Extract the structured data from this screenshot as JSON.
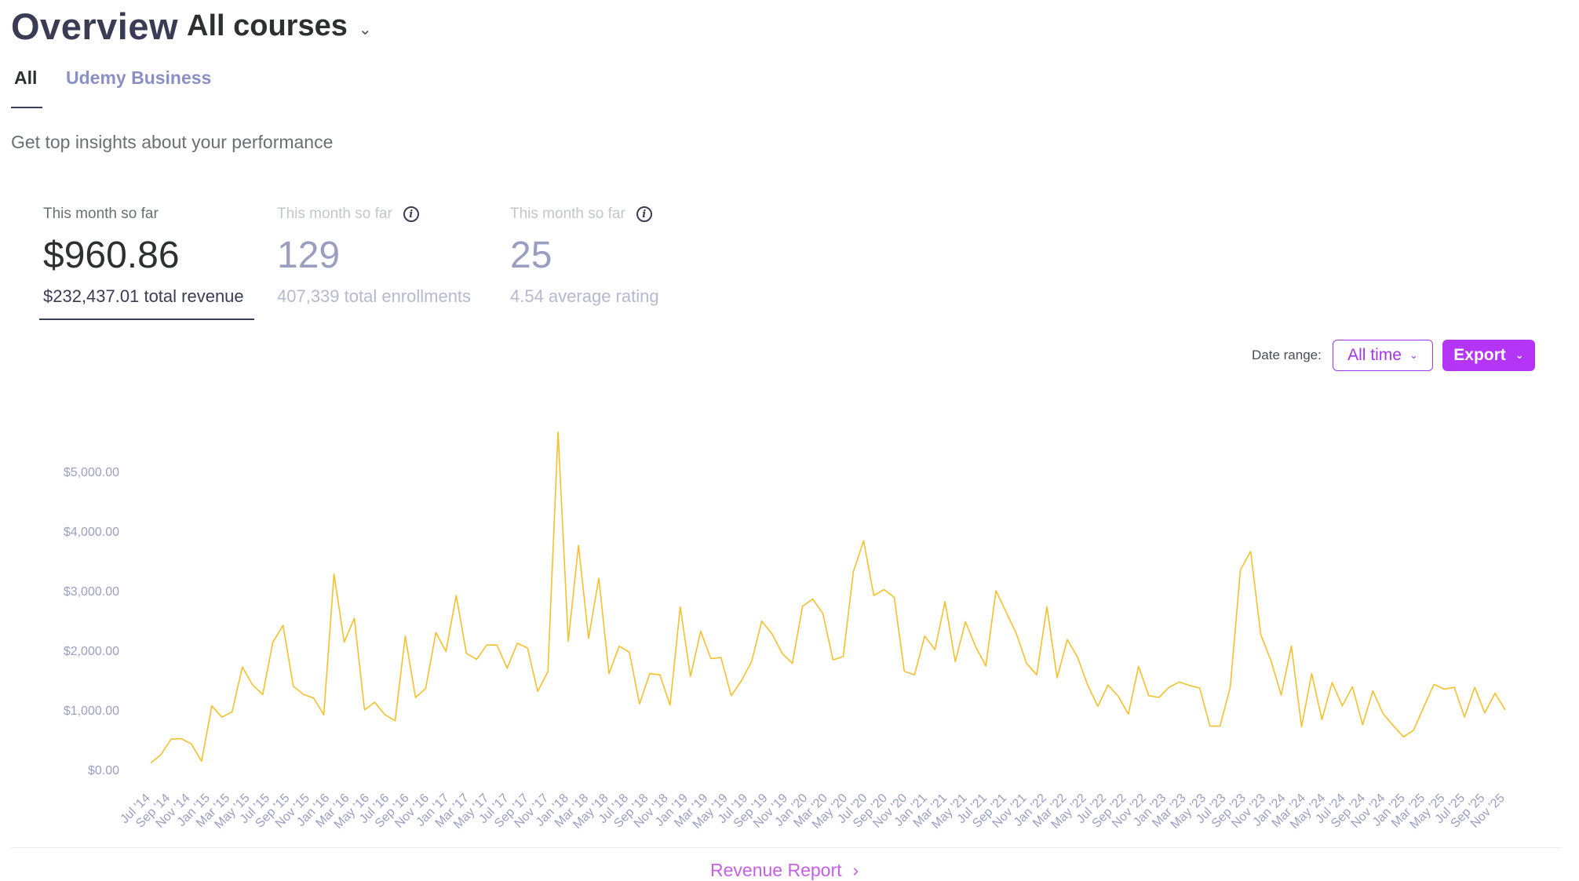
{
  "header": {
    "title": "Overview",
    "course_select": "All courses",
    "tabs": [
      {
        "label": "All",
        "active": true
      },
      {
        "label": "Udemy Business",
        "active": false
      }
    ],
    "subtitle": "Get top insights about your performance"
  },
  "metrics": [
    {
      "period": "This month so far",
      "value": "$960.86",
      "total": "$232,437.01 total revenue",
      "active": true,
      "info_icon": false
    },
    {
      "period": "This month so far",
      "value": "129",
      "total": "407,339 total enrollments",
      "active": false,
      "info_icon": true
    },
    {
      "period": "This month so far",
      "value": "25",
      "total": "4.54 average rating",
      "active": false,
      "info_icon": true
    }
  ],
  "controls": {
    "date_range_label": "Date range:",
    "date_range_value": "All time",
    "export_label": "Export"
  },
  "icons": {
    "course_select": "chevron-down-icon",
    "info": "info-icon",
    "date_range": "chevron-down-icon",
    "export": "chevron-down-icon",
    "revenue_report": "chevron-right-icon"
  },
  "colors": {
    "accent": "#a435f0",
    "line": "#f5c02c",
    "axis_text": "#9a9fc2"
  },
  "footer": {
    "revenue_report_label": "Revenue Report"
  },
  "chart_data": {
    "type": "line",
    "y_ticks": [
      "$0.00",
      "$1,000.00",
      "$2,000.00",
      "$3,000.00",
      "$4,000.00",
      "$5,000.00"
    ],
    "y_tick_values": [
      0,
      1000,
      2000,
      3000,
      4000,
      5000
    ],
    "ylim": [
      0,
      5750
    ],
    "x_tick_labels": [
      "Jul '14",
      "Sep '14",
      "Nov '14",
      "Jan '15",
      "Mar '15",
      "May '15",
      "Jul '15",
      "Sep '15",
      "Nov '15",
      "Jan '16",
      "Mar '16",
      "May '16",
      "Jul '16",
      "Sep '16",
      "Nov '16",
      "Jan '17",
      "Mar '17",
      "May '17",
      "Jul '17",
      "Sep '17",
      "Nov '17",
      "Jan '18",
      "Mar '18",
      "May '18",
      "Jul '18",
      "Sep '18",
      "Nov '18",
      "Jan '19",
      "Mar '19",
      "May '19",
      "Jul '19",
      "Sep '19",
      "Nov '19",
      "Jan '20",
      "Mar '20",
      "May '20",
      "Jul '20",
      "Sep '20",
      "Nov '20",
      "Jan '21",
      "Mar '21",
      "May '21",
      "Jul '21",
      "Sep '21",
      "Nov '21",
      "Jan '22",
      "Mar '22",
      "May '22",
      "Jul '22",
      "Sep '22",
      "Nov '22",
      "Jan '23",
      "Mar '23",
      "May '23",
      "Jul '23",
      "Sep '23",
      "Nov '23",
      "Jan '24",
      "Mar '24",
      "May '24",
      "Jul '24",
      "Sep '24",
      "Nov '24",
      "Jan '25",
      "Mar '25",
      "May '25",
      "Jul '25",
      "Sep '25",
      "Nov '25"
    ],
    "x_start": "2014-07",
    "x_end": "2025-11",
    "series": [
      {
        "values": [
          110,
          250,
          510,
          520,
          430,
          140,
          1070,
          880,
          970,
          1720,
          1420,
          1260,
          2140,
          2420,
          1400,
          1260,
          1200,
          920,
          3280,
          2140,
          2540,
          1000,
          1130,
          920,
          820,
          2240,
          1210,
          1360,
          2300,
          1980,
          2920,
          1950,
          1850,
          2090,
          2090,
          1700,
          2120,
          2040,
          1310,
          1640,
          5660,
          2150,
          3760,
          2200,
          3210,
          1610,
          2070,
          1970,
          1100,
          1610,
          1590,
          1080,
          2730,
          1560,
          2320,
          1860,
          1880,
          1240,
          1490,
          1810,
          2490,
          2280,
          1950,
          1780,
          2740,
          2860,
          2620,
          1840,
          1900,
          3320,
          3840,
          2920,
          3020,
          2890,
          1650,
          1590,
          2240,
          2010,
          2820,
          1810,
          2480,
          2060,
          1740,
          3000,
          2640,
          2280,
          1780,
          1590,
          2730,
          1540,
          2180,
          1890,
          1420,
          1060,
          1420,
          1230,
          930,
          1730,
          1240,
          1210,
          1380,
          1470,
          1410,
          1370,
          730,
          730,
          1380,
          3350,
          3660,
          2260,
          1830,
          1250,
          2070,
          720,
          1610,
          840,
          1460,
          1070,
          1390,
          750,
          1320,
          940,
          740,
          550,
          660,
          1050,
          1430,
          1350,
          1380,
          880,
          1380,
          950,
          1280,
          1000
        ]
      }
    ]
  }
}
